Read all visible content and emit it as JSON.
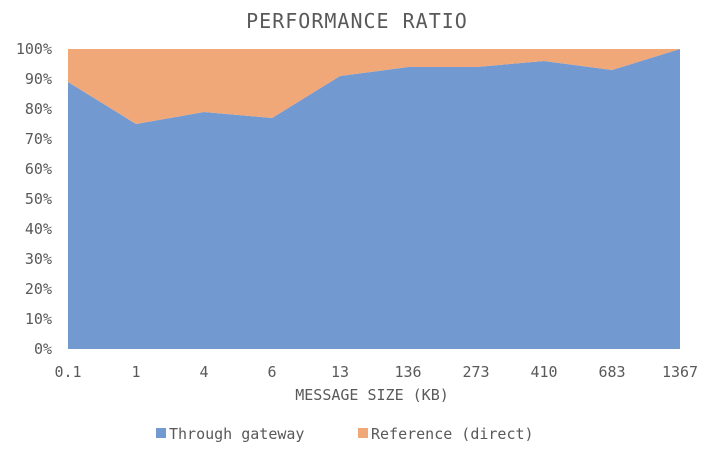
{
  "chart_data": {
    "type": "area",
    "stacked": true,
    "percent": true,
    "title": "PERFORMANCE RATIO",
    "xlabel": "MESSAGE SIZE (KB)",
    "ylabel": "",
    "categories": [
      "0.1",
      "1",
      "4",
      "6",
      "13",
      "136",
      "273",
      "410",
      "683",
      "1367"
    ],
    "series": [
      {
        "name": "Through gateway",
        "color": "#7399d1",
        "values": [
          89,
          75,
          79,
          77,
          91,
          94,
          94,
          96,
          93,
          100
        ]
      },
      {
        "name": "Reference (direct)",
        "color": "#f0a878",
        "values": [
          11,
          25,
          21,
          23,
          9,
          6,
          6,
          4,
          7,
          0
        ]
      }
    ],
    "ylim": [
      0,
      100
    ],
    "yticks": [
      "0%",
      "10%",
      "20%",
      "30%",
      "40%",
      "50%",
      "60%",
      "70%",
      "80%",
      "90%",
      "100%"
    ],
    "grid": false,
    "legend_position": "bottom"
  }
}
